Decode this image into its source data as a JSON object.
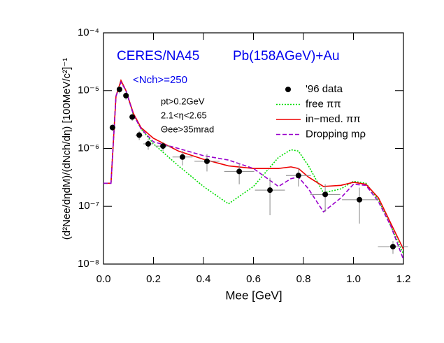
{
  "chart_data": {
    "type": "line",
    "title": "CERES/NA45",
    "subtitle": "Pb(158AGeV)+Au",
    "annotations": [
      "<Nch>=250",
      "pt>0.2GeV",
      "2.1<η<2.65",
      "Θee>35mrad"
    ],
    "x_label": "Mee [GeV]",
    "y_label": "(d²Nee/dηdM)/(dNch/dη) [100MeV/c²]⁻¹",
    "log_y": true,
    "xlim": [
      0,
      1.2
    ],
    "ylim": [
      1e-08,
      0.0001
    ],
    "xticks": [
      {
        "value": 0,
        "label": "0.0"
      },
      0.2,
      0.4,
      0.6,
      0.8,
      {
        "value": 1,
        "label": "1.0"
      },
      1.2
    ],
    "yticks": [
      {
        "value": 1e-08,
        "label": "10⁻⁸"
      },
      {
        "value": 1e-07,
        "label": "10⁻⁷"
      },
      {
        "value": 1e-06,
        "label": "10⁻⁶"
      },
      {
        "value": 1e-05,
        "label": "10⁻⁵"
      },
      {
        "value": 0.0001,
        "label": "10⁻⁴"
      }
    ],
    "x": [
      0,
      0.03,
      0.05,
      0.07,
      0.09,
      0.12,
      0.15,
      0.2,
      0.3,
      0.4,
      0.5,
      0.6,
      0.7,
      0.75,
      0.78,
      0.82,
      0.88,
      0.95,
      1.0,
      1.05,
      1.1,
      1.15,
      1.2
    ],
    "scatter": {
      "name": "'96 data",
      "color": "#000000",
      "x": [
        0.036,
        0.064,
        0.09,
        0.115,
        0.143,
        0.179,
        0.238,
        0.316,
        0.414,
        0.543,
        0.666,
        0.78,
        0.887,
        1.024,
        1.158
      ],
      "values": [
        2.3e-06,
        1.05e-05,
        8.2e-06,
        3.5e-06,
        1.7e-06,
        1.2e-06,
        1.1e-06,
        7.1e-07,
        6e-07,
        4e-07,
        1.9e-07,
        3.4e-07,
        1.6e-07,
        1.3e-07,
        2e-08
      ],
      "xerr": [
        0.01,
        0.01,
        0.01,
        0.01,
        0.015,
        0.02,
        0.03,
        0.04,
        0.05,
        0.06,
        0.06,
        0.05,
        0.06,
        0.07,
        0.06
      ],
      "yerr": [
        3e-07,
        1.5e-06,
        1.2e-06,
        5e-07,
        3e-07,
        2.5e-07,
        2e-07,
        2e-07,
        2e-07,
        1.6e-07,
        1.2e-07,
        1.2e-07,
        8e-08,
        8e-08,
        5e-09
      ]
    },
    "series": [
      {
        "name": "free ππ",
        "color": "#00dd00",
        "dash": "2,2",
        "values": [
          2.5e-07,
          2.5e-07,
          8e-06,
          1.5e-05,
          1e-05,
          3.8e-06,
          2.2e-06,
          1.2e-06,
          5e-07,
          2.2e-07,
          1.1e-07,
          2.2e-07,
          7e-07,
          9.5e-07,
          9e-07,
          5e-07,
          1.7e-07,
          2e-07,
          2.7e-07,
          2.5e-07,
          1.3e-07,
          4.5e-08,
          1.5e-08
        ]
      },
      {
        "name": "in−med. ππ",
        "color": "#ee0000",
        "dash": "none",
        "values": [
          2.5e-07,
          2.5e-07,
          8e-06,
          1.5e-05,
          1e-05,
          4e-06,
          2.3e-06,
          1.5e-06,
          9e-07,
          6.5e-07,
          5e-07,
          4.5e-07,
          4.5e-07,
          4.8e-07,
          4.5e-07,
          3.2e-07,
          2.2e-07,
          2.3e-07,
          2.6e-07,
          2.4e-07,
          1.4e-07,
          5e-08,
          1.8e-08
        ]
      },
      {
        "name": "Dropping mρ",
        "color": "#9900cc",
        "dash": "6,3",
        "values": [
          2.5e-07,
          2.5e-07,
          8e-06,
          1.4e-05,
          1e-05,
          3.8e-06,
          2.2e-06,
          1.3e-06,
          1e-06,
          7.5e-07,
          6.3e-07,
          4.5e-07,
          2.2e-07,
          3e-07,
          3.2e-07,
          2e-07,
          8e-08,
          1.4e-07,
          2.4e-07,
          2.3e-07,
          1.2e-07,
          4.5e-08,
          1.2e-08
        ]
      }
    ]
  }
}
